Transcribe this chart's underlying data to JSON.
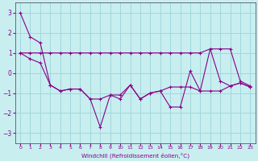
{
  "xlabel": "Windchill (Refroidissement éolien,°C)",
  "background_color": "#c8eef0",
  "line_color": "#880088",
  "grid_color": "#a0d8dc",
  "x_values": [
    0,
    1,
    2,
    3,
    4,
    5,
    6,
    7,
    8,
    9,
    10,
    11,
    12,
    13,
    14,
    15,
    16,
    17,
    18,
    19,
    20,
    21,
    22,
    23
  ],
  "y_main": [
    3.0,
    1.8,
    1.5,
    -0.6,
    -0.9,
    -0.8,
    -0.8,
    -1.3,
    -2.7,
    -1.1,
    -1.3,
    -0.6,
    -1.3,
    -1.0,
    -0.9,
    -1.7,
    -1.7,
    0.1,
    -0.9,
    1.2,
    -0.4,
    -0.65,
    -0.5,
    -0.7
  ],
  "y_upper": [
    1.0,
    1.0,
    1.0,
    1.0,
    1.0,
    1.0,
    1.0,
    1.0,
    1.0,
    1.0,
    1.0,
    1.0,
    1.0,
    1.0,
    1.0,
    1.0,
    1.0,
    1.0,
    1.0,
    1.2,
    1.2,
    1.2,
    -0.4,
    -0.65
  ],
  "y_lower": [
    1.0,
    0.7,
    0.5,
    -0.6,
    -0.9,
    -0.8,
    -0.8,
    -1.3,
    -1.3,
    -1.1,
    -1.1,
    -0.6,
    -1.3,
    -1.0,
    -0.9,
    -0.7,
    -0.7,
    -0.7,
    -0.9,
    -0.9,
    -0.9,
    -0.65,
    -0.5,
    -0.7
  ],
  "ylim": [
    -3.5,
    3.5
  ],
  "yticks": [
    -3,
    -2,
    -1,
    0,
    1,
    2,
    3
  ]
}
